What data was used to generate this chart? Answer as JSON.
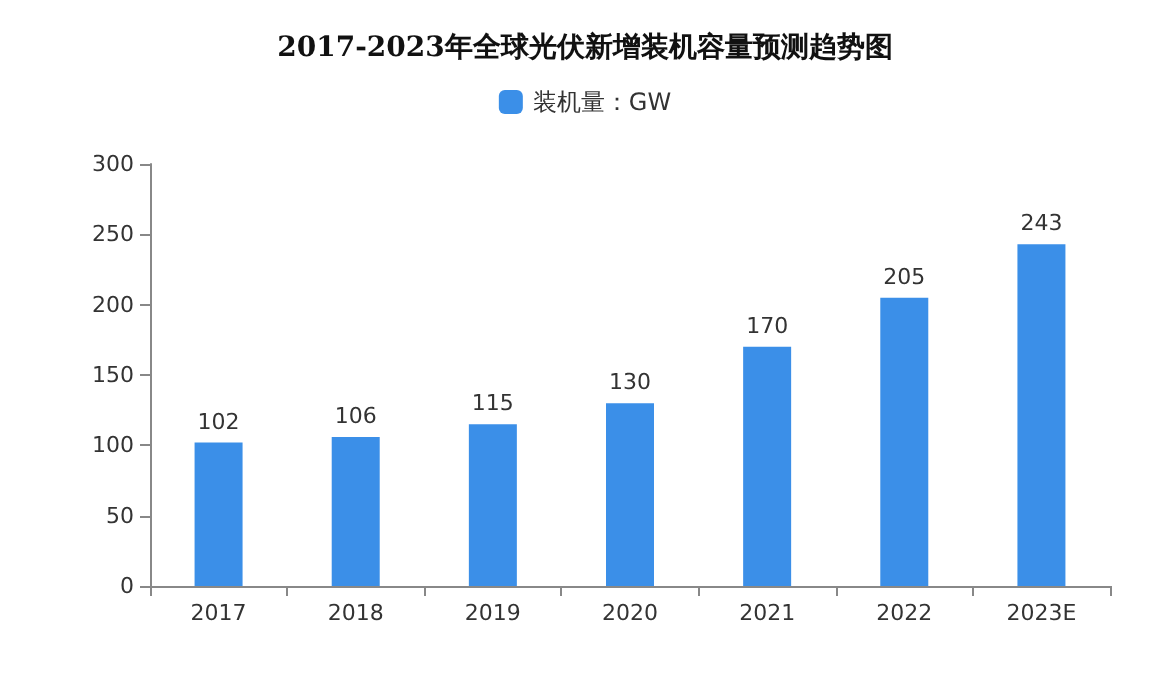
{
  "chart_data": {
    "type": "bar",
    "title": "2017-2023年全球光伏新增装机容量预测趋势图",
    "categories": [
      "2017",
      "2018",
      "2019",
      "2020",
      "2021",
      "2022",
      "2023E"
    ],
    "series": [
      {
        "name": "装机量：GW",
        "color": "#3b8fe8",
        "values": [
          102,
          106,
          115,
          130,
          170,
          205,
          243
        ]
      }
    ],
    "ylim": [
      0,
      300
    ],
    "yticks": [
      0,
      50,
      100,
      150,
      200,
      250,
      300
    ],
    "grid": false,
    "legend": "top",
    "data_labels": true
  }
}
